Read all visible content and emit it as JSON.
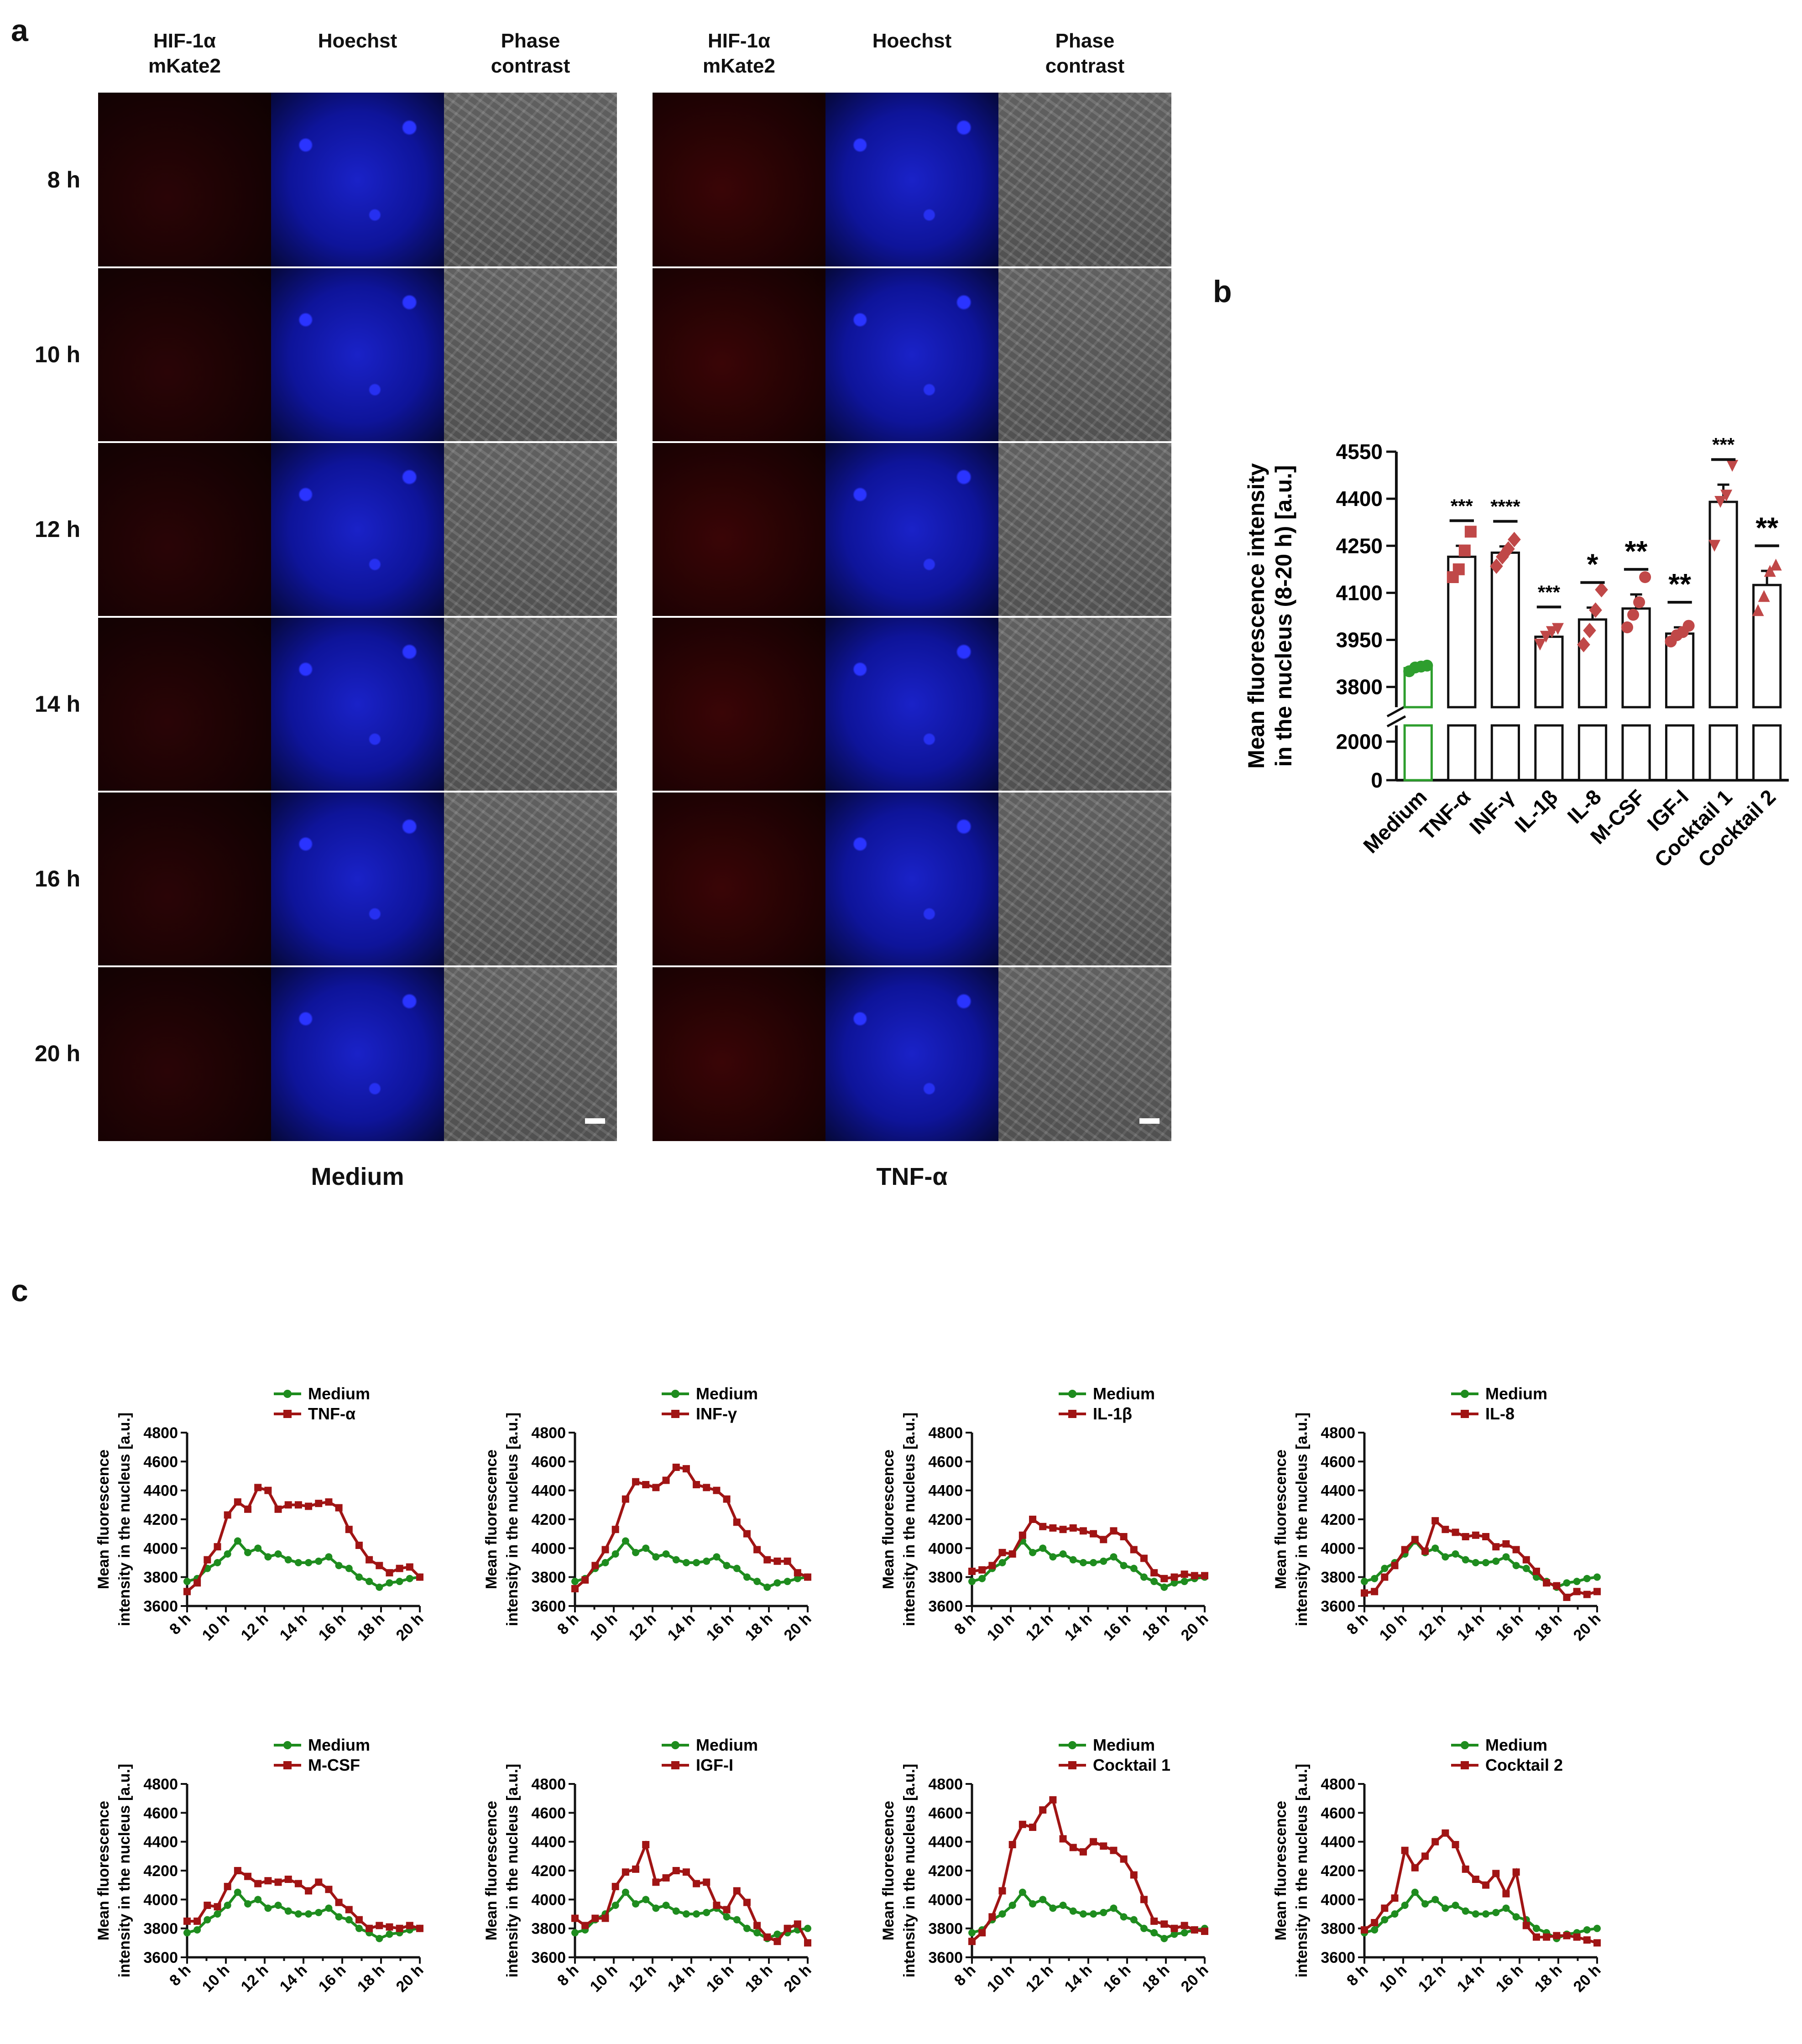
{
  "panel_a": {
    "letter": "a",
    "groups": [
      {
        "name": "Medium",
        "columns": [
          "HIF-1α\nmKate2",
          "Hoechst",
          "Phase\ncontrast"
        ]
      },
      {
        "name": "TNF-α",
        "columns": [
          "HIF-1α\nmKate2",
          "Hoechst",
          "Phase\ncontrast"
        ]
      }
    ],
    "rows": [
      "8 h",
      "10 h",
      "12 h",
      "14 h",
      "16 h",
      "20 h"
    ],
    "colors": {
      "mkate2": "#1a0203",
      "hoechst": "#1a22c8",
      "phase": "#626262"
    }
  },
  "panel_b": {
    "letter": "b",
    "chart_data": {
      "type": "bar",
      "ylabel": "Mean fluorescence intensity\nin the nucleus (8-20 h) [a.u.]",
      "categories": [
        "Medium",
        "TNF-α",
        "INF-γ",
        "IL-1β",
        "IL-8",
        "M-CSF",
        "IGF-I",
        "Cocktail 1",
        "Cocktail 2"
      ],
      "values": [
        3860,
        4215,
        4228,
        3960,
        4015,
        4050,
        3970,
        4390,
        4125
      ],
      "sem": [
        8,
        35,
        20,
        15,
        38,
        45,
        20,
        55,
        45
      ],
      "points": [
        [
          3850,
          3862,
          3865,
          3868
        ],
        [
          4150,
          4175,
          4235,
          4295
        ],
        [
          4185,
          4215,
          4240,
          4270
        ],
        [
          3935,
          3960,
          3975,
          3985
        ],
        [
          3935,
          3980,
          4045,
          4110
        ],
        [
          3990,
          4030,
          4070,
          4150
        ],
        [
          3945,
          3965,
          3975,
          3995
        ],
        [
          4250,
          4390,
          4410,
          4505
        ],
        [
          4045,
          4090,
          4170,
          4190
        ]
      ],
      "significance": [
        "",
        "***",
        "****",
        "***",
        "*",
        "**",
        "**",
        "***",
        "**"
      ],
      "yticks_upper": [
        3800,
        3950,
        4100,
        4250,
        4400,
        4550
      ],
      "yticks_lower": [
        0,
        2000
      ],
      "ylim_upper": [
        3750,
        4550
      ],
      "ylim_lower": [
        0,
        2600
      ],
      "colors": {
        "medium": "#2e9e2e",
        "treatment": "#c04848",
        "bar_edge": "#111111"
      }
    }
  },
  "panel_c": {
    "letter": "c",
    "ylabel": [
      "Mean fluorescence",
      "intensity in the nucleus [a.u.]"
    ],
    "x_ticks": [
      "8 h",
      "10 h",
      "12 h",
      "14 h",
      "16 h",
      "18 h",
      "20 h"
    ],
    "y_ticks": [
      3600,
      3800,
      4000,
      4200,
      4400,
      4600,
      4800
    ],
    "colors": {
      "medium": "#1e8c1e",
      "treatment": "#a01414"
    },
    "chart_data": [
      {
        "type": "line",
        "ylim": [
          3600,
          4800
        ],
        "xlim": [
          8,
          20
        ],
        "series": [
          {
            "name": "Medium",
            "values": [
              3770,
              3790,
              3860,
              3900,
              3960,
              4050,
              3970,
              4000,
              3940,
              3960,
              3920,
              3900,
              3900,
              3910,
              3940,
              3880,
              3860,
              3800,
              3770,
              3730,
              3760,
              3770,
              3790,
              3800
            ]
          },
          {
            "name": "TNF-α",
            "values": [
              3700,
              3760,
              3920,
              4010,
              4230,
              4320,
              4270,
              4420,
              4400,
              4270,
              4300,
              4300,
              4290,
              4310,
              4320,
              4280,
              4130,
              4020,
              3920,
              3880,
              3830,
              3860,
              3870,
              3800
            ]
          }
        ]
      },
      {
        "type": "line",
        "ylim": [
          3600,
          4800
        ],
        "xlim": [
          8,
          20
        ],
        "series": [
          {
            "name": "Medium",
            "values": [
              3770,
              3790,
              3860,
              3900,
              3960,
              4050,
              3970,
              4000,
              3940,
              3960,
              3920,
              3900,
              3900,
              3910,
              3940,
              3880,
              3860,
              3800,
              3770,
              3730,
              3760,
              3770,
              3790,
              3800
            ]
          },
          {
            "name": "INF-γ",
            "values": [
              3720,
              3780,
              3880,
              3990,
              4130,
              4340,
              4460,
              4440,
              4420,
              4470,
              4560,
              4550,
              4440,
              4420,
              4400,
              4340,
              4180,
              4100,
              3990,
              3920,
              3910,
              3910,
              3830,
              3800
            ]
          }
        ]
      },
      {
        "type": "line",
        "ylim": [
          3600,
          4800
        ],
        "xlim": [
          8,
          20
        ],
        "series": [
          {
            "name": "Medium",
            "values": [
              3770,
              3790,
              3860,
              3900,
              3960,
              4050,
              3970,
              4000,
              3940,
              3960,
              3920,
              3900,
              3900,
              3910,
              3940,
              3880,
              3860,
              3800,
              3770,
              3730,
              3760,
              3770,
              3790,
              3800
            ]
          },
          {
            "name": "IL-1β",
            "values": [
              3840,
              3850,
              3880,
              3970,
              3960,
              4090,
              4200,
              4150,
              4140,
              4130,
              4140,
              4120,
              4100,
              4060,
              4120,
              4080,
              3990,
              3930,
              3830,
              3790,
              3800,
              3820,
              3810,
              3810
            ]
          }
        ]
      },
      {
        "type": "line",
        "ylim": [
          3600,
          4800
        ],
        "xlim": [
          8,
          20
        ],
        "series": [
          {
            "name": "Medium",
            "values": [
              3770,
              3790,
              3860,
              3900,
              3960,
              4050,
              3970,
              4000,
              3940,
              3960,
              3920,
              3900,
              3900,
              3910,
              3940,
              3880,
              3860,
              3800,
              3770,
              3730,
              3760,
              3770,
              3790,
              3800
            ]
          },
          {
            "name": "IL-8",
            "values": [
              3690,
              3700,
              3800,
              3880,
              3990,
              4060,
              3980,
              4190,
              4130,
              4110,
              4080,
              4090,
              4080,
              4010,
              4030,
              3990,
              3920,
              3840,
              3760,
              3740,
              3660,
              3700,
              3680,
              3700
            ]
          }
        ]
      },
      {
        "type": "line",
        "ylim": [
          3600,
          4800
        ],
        "xlim": [
          8,
          20
        ],
        "series": [
          {
            "name": "Medium",
            "values": [
              3770,
              3790,
              3860,
              3900,
              3960,
              4050,
              3970,
              4000,
              3940,
              3960,
              3920,
              3900,
              3900,
              3910,
              3940,
              3880,
              3860,
              3800,
              3770,
              3730,
              3760,
              3770,
              3790,
              3800
            ]
          },
          {
            "name": "M-CSF",
            "values": [
              3850,
              3850,
              3960,
              3950,
              4090,
              4200,
              4160,
              4110,
              4130,
              4120,
              4140,
              4110,
              4060,
              4120,
              4070,
              3980,
              3930,
              3860,
              3800,
              3820,
              3810,
              3800,
              3820,
              3800
            ]
          }
        ]
      },
      {
        "type": "line",
        "ylim": [
          3600,
          4800
        ],
        "xlim": [
          8,
          20
        ],
        "series": [
          {
            "name": "Medium",
            "values": [
              3770,
              3790,
              3860,
              3900,
              3960,
              4050,
              3970,
              4000,
              3940,
              3960,
              3920,
              3900,
              3900,
              3910,
              3940,
              3880,
              3860,
              3800,
              3770,
              3730,
              3760,
              3770,
              3790,
              3800
            ]
          },
          {
            "name": "IGF-I",
            "values": [
              3870,
              3820,
              3870,
              3870,
              4090,
              4190,
              4210,
              4380,
              4120,
              4150,
              4200,
              4190,
              4110,
              4120,
              3960,
              3930,
              4060,
              3980,
              3820,
              3740,
              3710,
              3800,
              3830,
              3700
            ]
          }
        ]
      },
      {
        "type": "line",
        "ylim": [
          3600,
          4800
        ],
        "xlim": [
          8,
          20
        ],
        "series": [
          {
            "name": "Medium",
            "values": [
              3770,
              3790,
              3860,
              3900,
              3960,
              4050,
              3970,
              4000,
              3940,
              3960,
              3920,
              3900,
              3900,
              3910,
              3940,
              3880,
              3860,
              3800,
              3770,
              3730,
              3760,
              3770,
              3790,
              3800
            ]
          },
          {
            "name": "Cocktail 1",
            "values": [
              3710,
              3770,
              3880,
              4060,
              4380,
              4520,
              4500,
              4620,
              4690,
              4420,
              4360,
              4330,
              4400,
              4370,
              4340,
              4280,
              4170,
              4000,
              3850,
              3830,
              3800,
              3820,
              3790,
              3780
            ]
          }
        ]
      },
      {
        "type": "line",
        "ylim": [
          3600,
          4800
        ],
        "xlim": [
          8,
          20
        ],
        "series": [
          {
            "name": "Medium",
            "values": [
              3770,
              3790,
              3860,
              3900,
              3960,
              4050,
              3970,
              4000,
              3940,
              3960,
              3920,
              3900,
              3900,
              3910,
              3940,
              3880,
              3860,
              3800,
              3770,
              3730,
              3760,
              3770,
              3790,
              3800
            ]
          },
          {
            "name": "Cocktail 2",
            "values": [
              3790,
              3840,
              3940,
              4010,
              4340,
              4220,
              4300,
              4400,
              4460,
              4380,
              4210,
              4140,
              4100,
              4180,
              4040,
              4190,
              3820,
              3740,
              3740,
              3750,
              3750,
              3740,
              3720,
              3700
            ]
          }
        ]
      }
    ]
  }
}
